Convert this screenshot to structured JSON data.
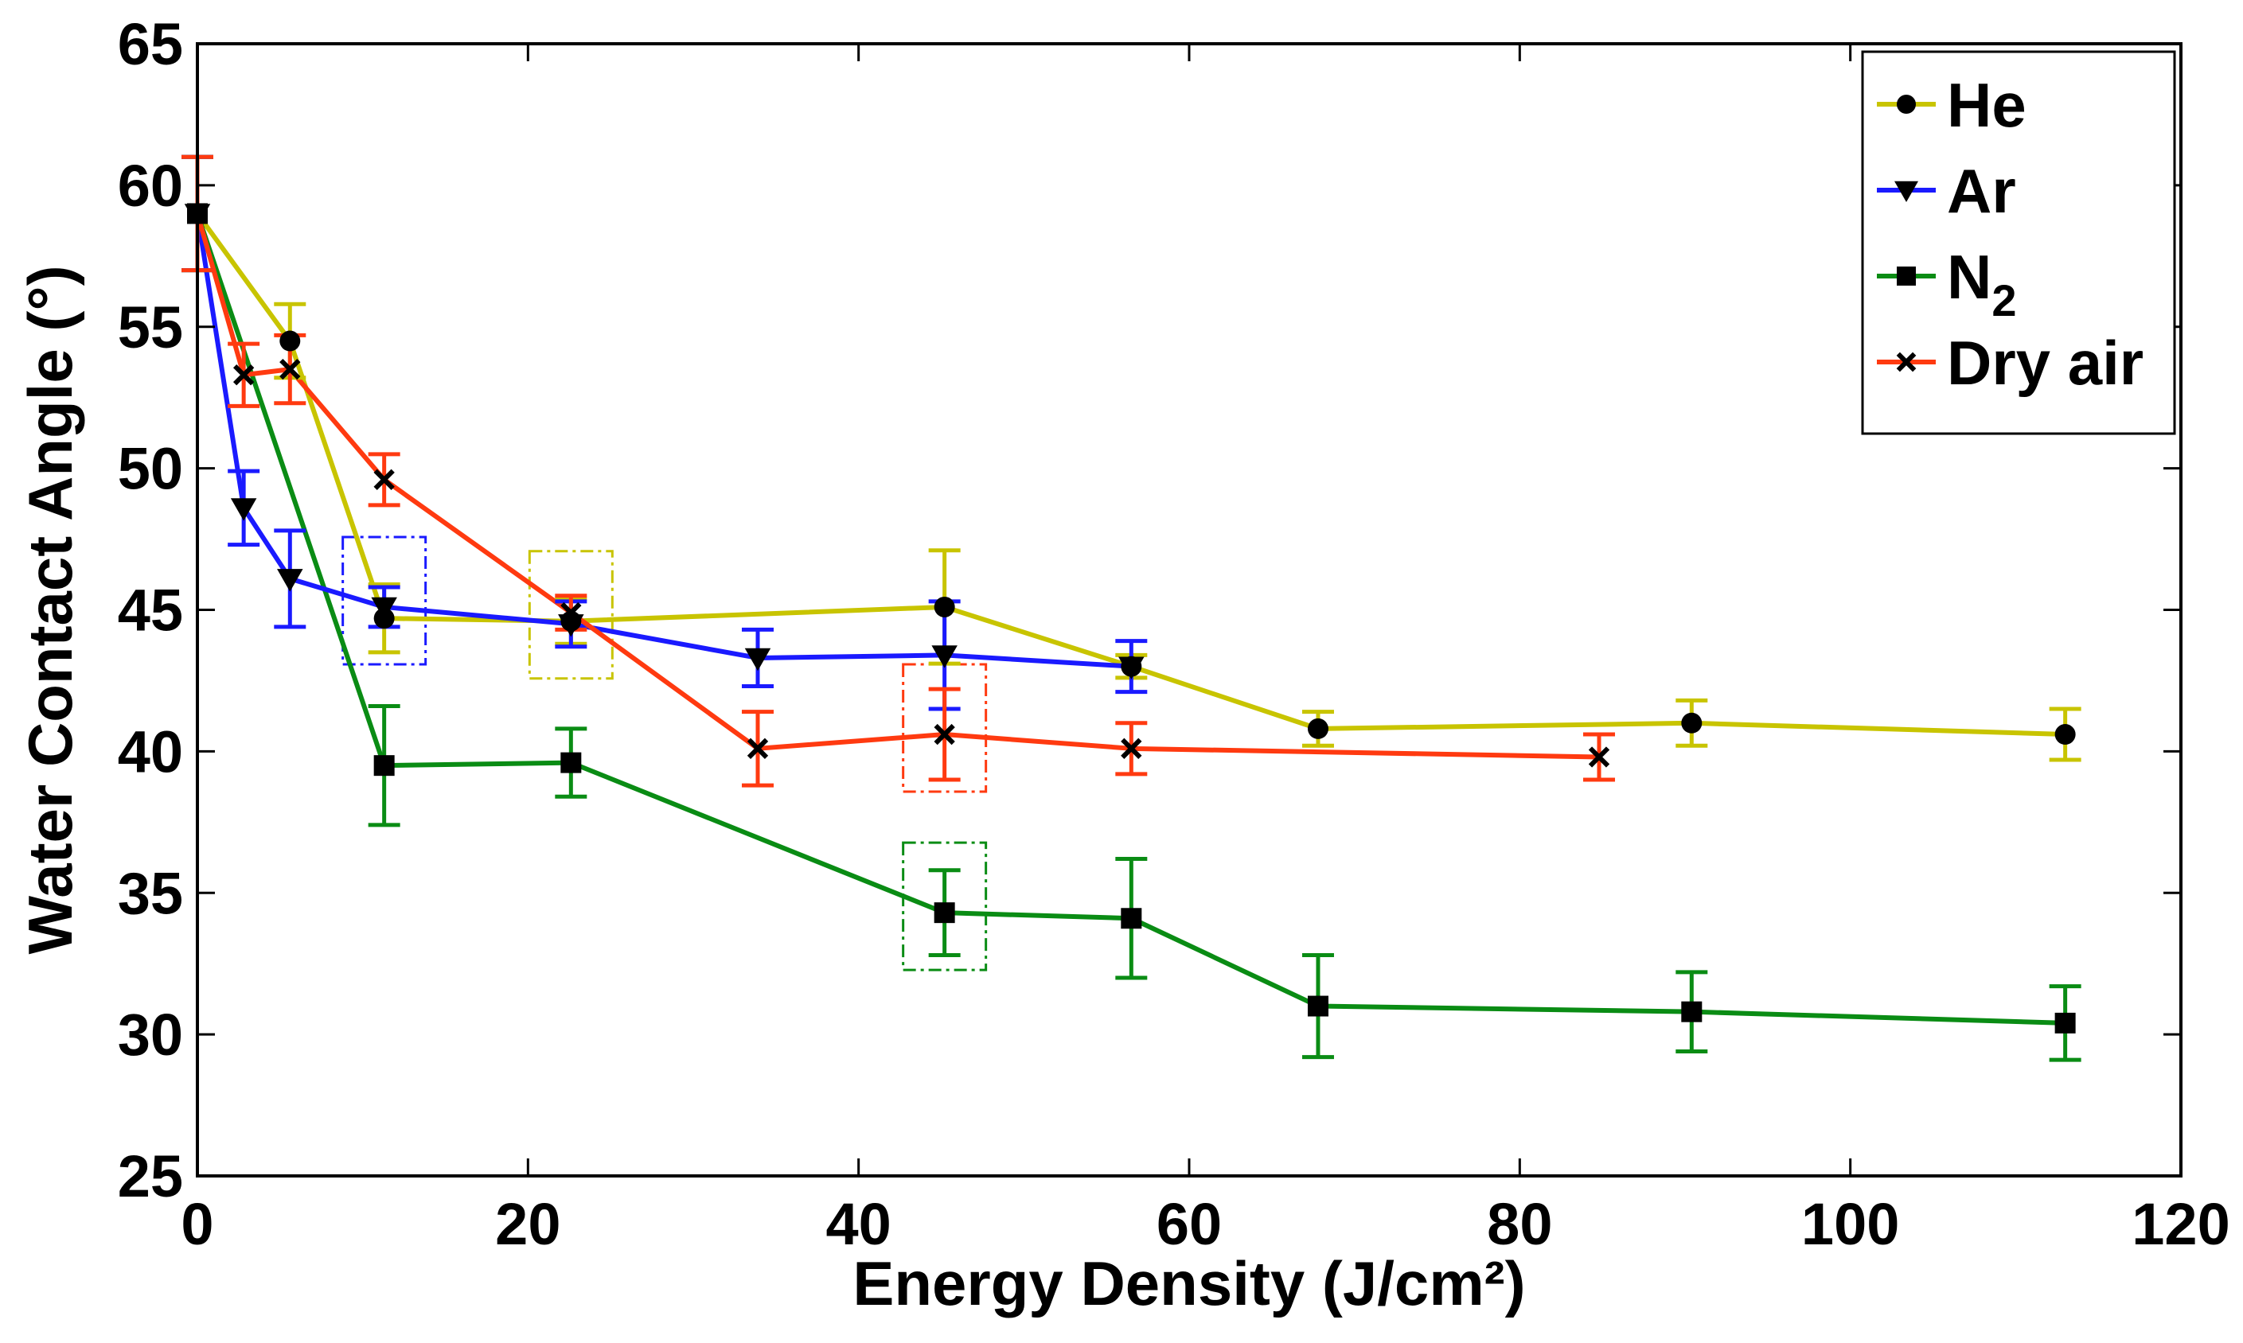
{
  "chart_data": {
    "type": "line",
    "title": "",
    "xlabel": "Energy Density (J/cm²)",
    "ylabel": "Water Contact Angle (°)",
    "xlim": [
      0,
      120
    ],
    "ylim": [
      25,
      65
    ],
    "xticks": [
      "0",
      "20",
      "40",
      "60",
      "80",
      "100",
      "120"
    ],
    "yticks": [
      "25",
      "30",
      "35",
      "40",
      "45",
      "50",
      "55",
      "60",
      "65"
    ],
    "grid": false,
    "legend_position": "top-right",
    "series": [
      {
        "name": "He",
        "color": "#c8c400",
        "marker": "circle",
        "x": [
          0,
          5.6,
          11.3,
          22.6,
          45.2,
          56.5,
          67.8,
          90.4,
          113
        ],
        "y": [
          59,
          54.5,
          44.7,
          44.6,
          45.1,
          43.0,
          40.8,
          41.0,
          40.6
        ],
        "err": [
          2.0,
          1.3,
          1.2,
          0.8,
          2.0,
          0.4,
          0.6,
          0.8,
          0.9
        ]
      },
      {
        "name": "Ar",
        "color": "#1a1aff",
        "marker": "triangle-down",
        "x": [
          0,
          2.8,
          5.6,
          11.3,
          22.6,
          33.9,
          45.2,
          56.5
        ],
        "y": [
          59,
          48.6,
          46.1,
          45.1,
          44.5,
          43.3,
          43.4,
          43.0
        ],
        "err": [
          2.0,
          1.3,
          1.7,
          0.7,
          0.8,
          1.0,
          1.9,
          0.9
        ]
      },
      {
        "name": "N2",
        "label_main": "N",
        "label_sub": "2",
        "color": "#0a8c14",
        "marker": "square",
        "x": [
          0,
          11.3,
          22.6,
          45.2,
          56.5,
          67.8,
          90.4,
          113
        ],
        "y": [
          59,
          39.5,
          39.6,
          34.3,
          34.1,
          31.0,
          30.8,
          30.4
        ],
        "err": [
          2.0,
          2.1,
          1.2,
          1.5,
          2.1,
          1.8,
          1.4,
          1.3
        ]
      },
      {
        "name": "Dry air",
        "color": "#ff3a10",
        "marker": "x",
        "x": [
          0,
          2.8,
          5.6,
          11.3,
          22.6,
          33.9,
          45.2,
          56.5,
          84.8
        ],
        "y": [
          59,
          53.3,
          53.5,
          49.6,
          44.9,
          40.1,
          40.6,
          40.1,
          39.8
        ],
        "err": [
          2.0,
          1.1,
          1.2,
          0.9,
          0.6,
          1.3,
          1.6,
          0.9,
          0.8
        ]
      }
    ],
    "annotations": [
      {
        "type": "dashed-box",
        "series": "Ar",
        "x": 11.3,
        "y": 45.1,
        "color": "#1a1aff"
      },
      {
        "type": "dashed-box",
        "series": "He",
        "x": 22.6,
        "y": 44.6,
        "color": "#c8c400"
      },
      {
        "type": "dashed-box",
        "series": "Dry air",
        "x": 45.2,
        "y": 40.6,
        "color": "#ff3a10"
      },
      {
        "type": "dashed-box",
        "series": "N2",
        "x": 45.2,
        "y": 34.3,
        "color": "#0a8c14"
      }
    ]
  }
}
